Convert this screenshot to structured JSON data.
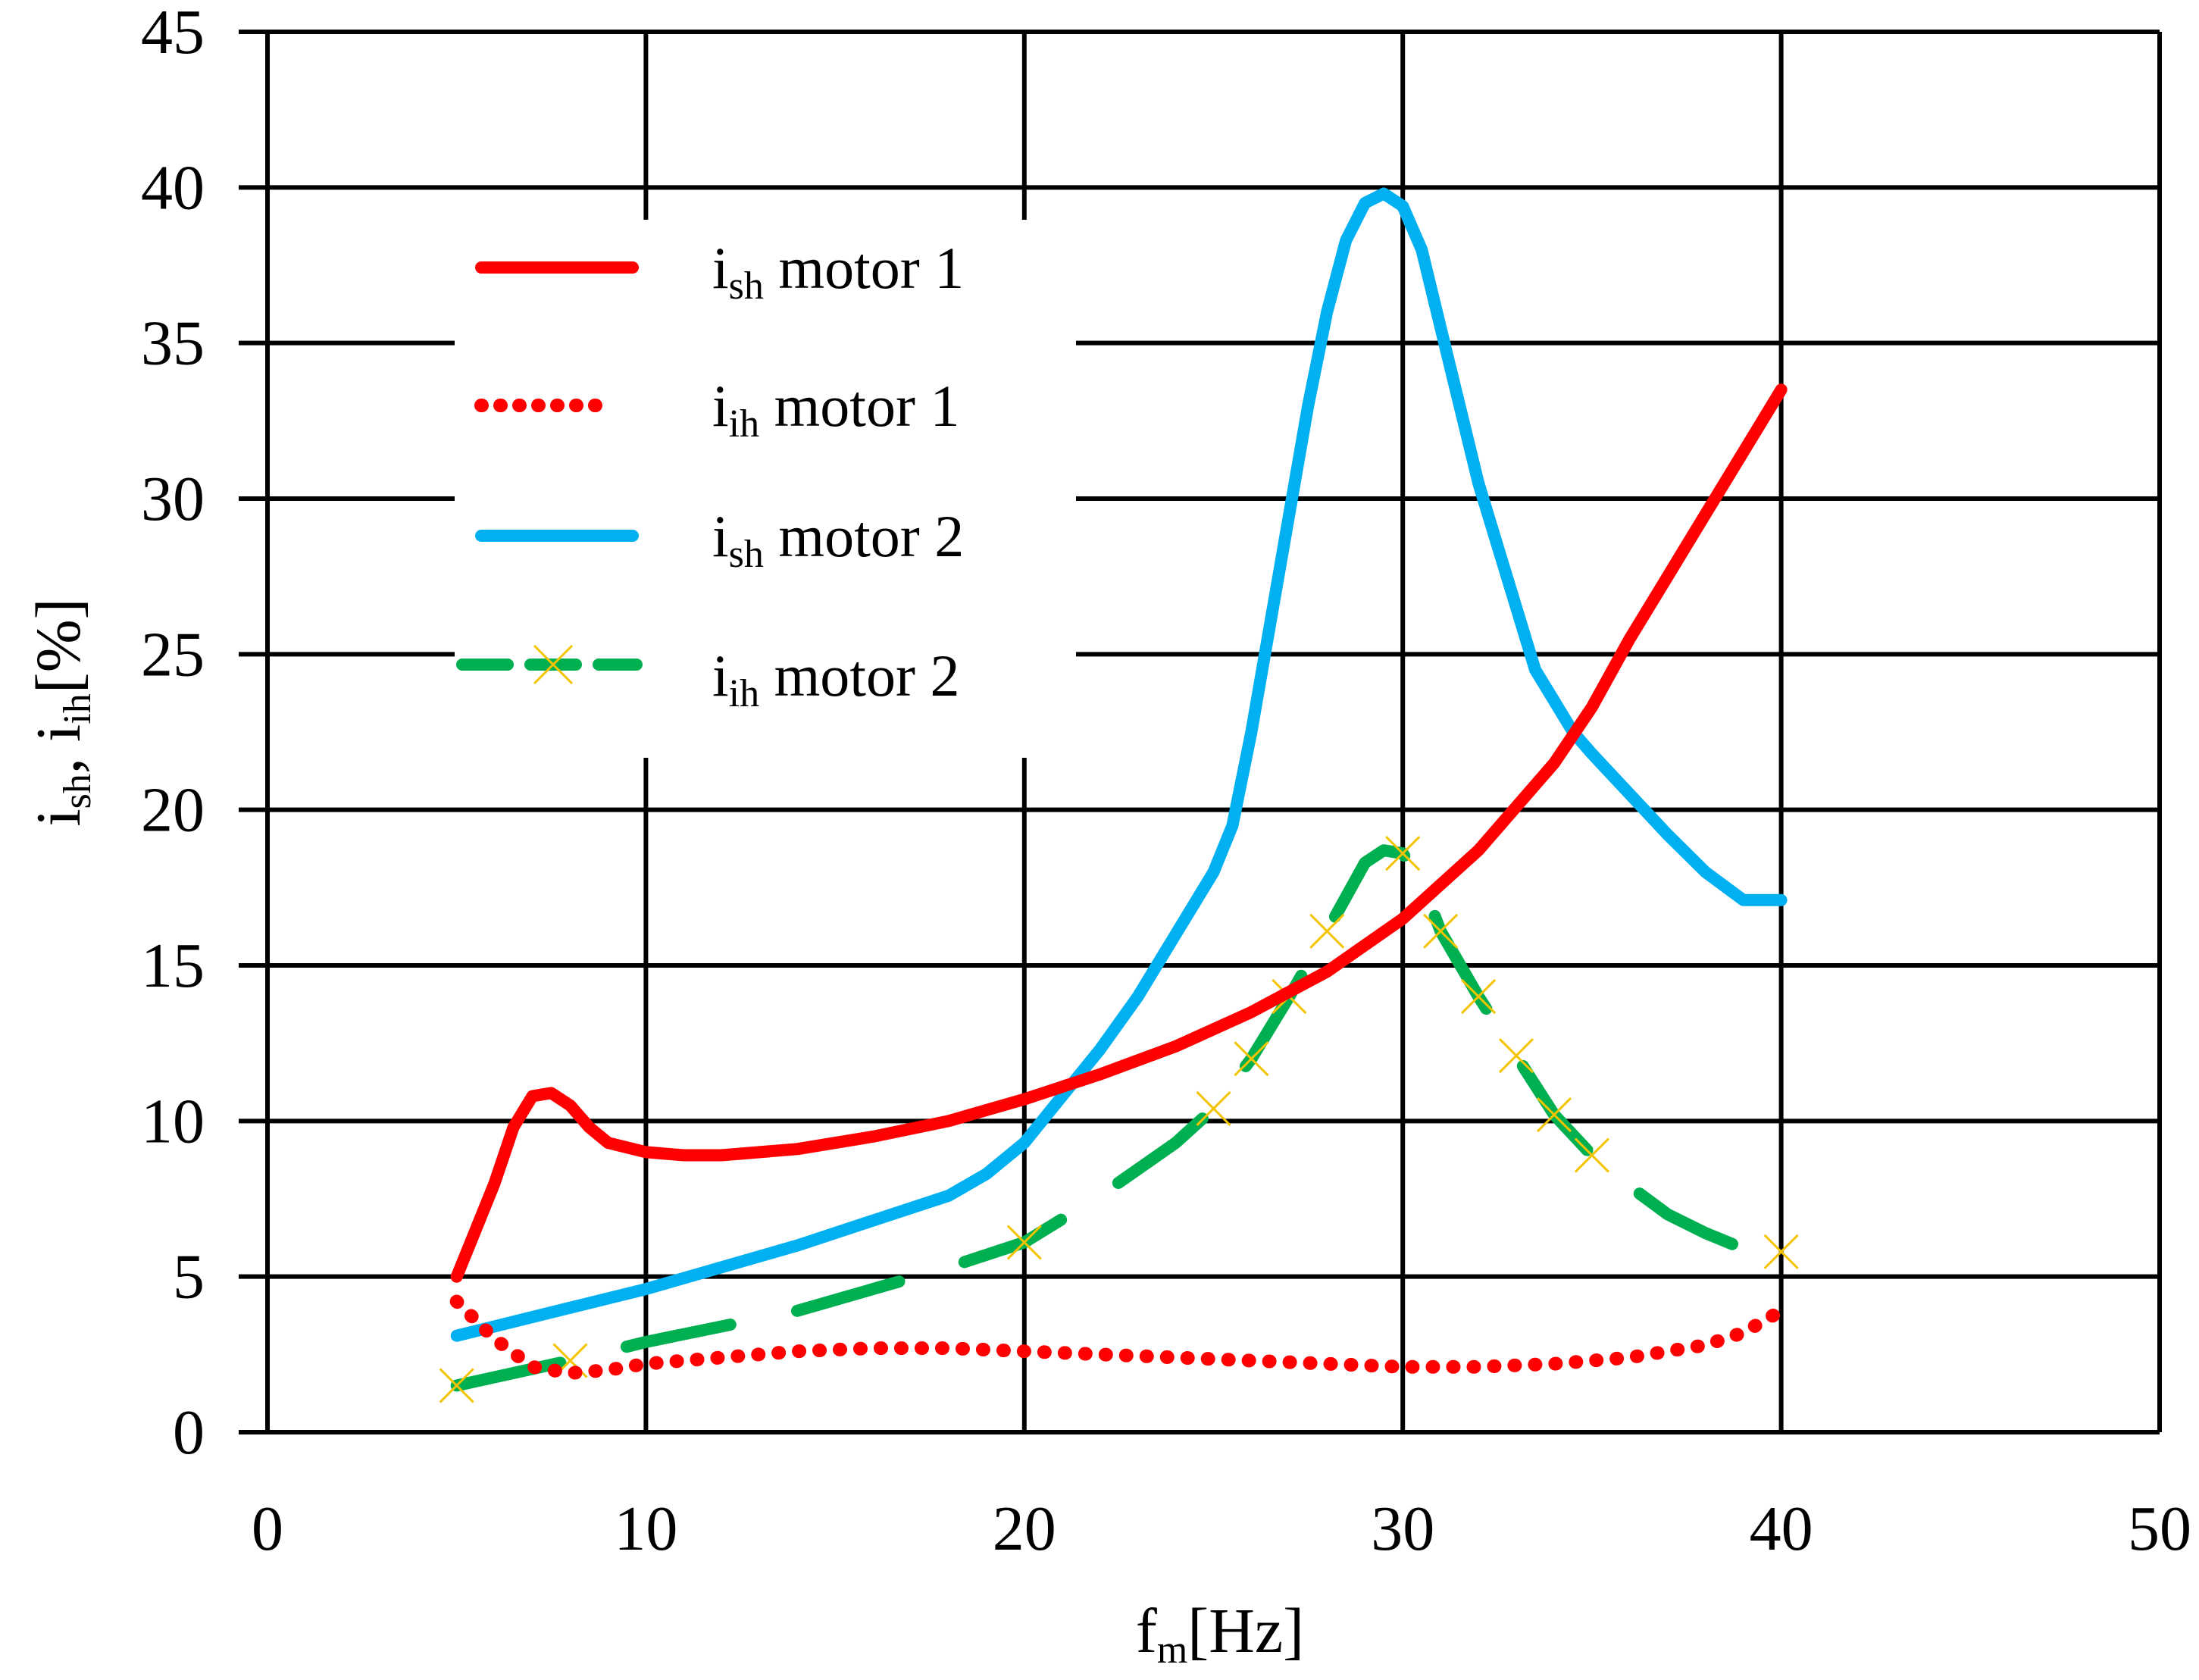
{
  "chart_data": {
    "type": "line",
    "title": "",
    "xlabel": {
      "main": "f",
      "sub": "m",
      "rest": "[Hz]"
    },
    "ylabel": {
      "p1": "i",
      "s1": "sh",
      "p2": ", i",
      "s2": "ih",
      "p3": "[%]"
    },
    "xlim": [
      0,
      50
    ],
    "ylim": [
      0,
      45
    ],
    "x_ticks": [
      0,
      10,
      20,
      30,
      40,
      50
    ],
    "y_ticks": [
      0,
      5,
      10,
      15,
      20,
      25,
      30,
      35,
      40,
      45
    ],
    "grid": true,
    "legend_position": "top-left",
    "series": [
      {
        "name": "i_sh motor 1",
        "legend": {
          "base": "i",
          "sub": "sh",
          "rest": " motor 1"
        },
        "color": "#ff0000",
        "style": "solid",
        "x": [
          5,
          5.5,
          6,
          6.5,
          7,
          7.5,
          8,
          8.5,
          9,
          10,
          11,
          12,
          14,
          16,
          18,
          20,
          22,
          24,
          26,
          28,
          30,
          32,
          34,
          35,
          36,
          37,
          38,
          39,
          40
        ],
        "y": [
          5,
          6.5,
          8,
          9.8,
          10.8,
          10.9,
          10.5,
          9.8,
          9.3,
          9,
          8.9,
          8.9,
          9.1,
          9.5,
          10,
          10.7,
          11.5,
          12.4,
          13.5,
          14.8,
          16.5,
          18.7,
          21.5,
          23.3,
          25.5,
          27.5,
          29.5,
          31.5,
          33.5
        ]
      },
      {
        "name": "i_ih motor 1",
        "legend": {
          "base": "i",
          "sub": "ih",
          "rest": " motor 1"
        },
        "color": "#ff0000",
        "style": "dotted",
        "x": [
          5,
          6,
          7,
          8,
          9,
          10,
          12,
          14,
          16,
          18,
          20,
          22,
          24,
          26,
          28,
          30,
          32,
          34,
          36,
          38,
          39,
          40
        ],
        "y": [
          4.2,
          3,
          2.1,
          1.9,
          2.0,
          2.2,
          2.4,
          2.6,
          2.7,
          2.7,
          2.6,
          2.5,
          2.4,
          2.3,
          2.2,
          2.1,
          2.1,
          2.2,
          2.4,
          2.8,
          3.2,
          3.9
        ]
      },
      {
        "name": "i_sh motor 2",
        "legend": {
          "base": "i",
          "sub": "sh",
          "rest": " motor 2"
        },
        "color": "#00b0f0",
        "style": "solid",
        "x": [
          5,
          8,
          10,
          12,
          14,
          16,
          18,
          19,
          20,
          21,
          22,
          23,
          24,
          25,
          25.5,
          26,
          26.5,
          27,
          27.5,
          28,
          28.5,
          29,
          29.5,
          30,
          30.5,
          31,
          31.5,
          32,
          32.5,
          33,
          33.5,
          34,
          34.5,
          35,
          36,
          37,
          38,
          39,
          40
        ],
        "y": [
          3.1,
          4,
          4.6,
          5.3,
          6,
          6.8,
          7.6,
          8.3,
          9.3,
          10.8,
          12.3,
          14,
          16,
          18,
          19.5,
          22.5,
          26,
          29.5,
          33,
          36,
          38.3,
          39.5,
          39.8,
          39.4,
          38,
          35.5,
          33,
          30.5,
          28.5,
          26.5,
          24.5,
          23.5,
          22.5,
          21.8,
          20.5,
          19.2,
          18,
          17.1,
          17.1
        ]
      },
      {
        "name": "i_ih motor 2",
        "legend": {
          "base": "i",
          "sub": "ih",
          "rest": " motor 2"
        },
        "color": "#00b050",
        "style": "dashed",
        "marker_color": "#f5c400",
        "x": [
          5,
          8,
          10,
          12,
          14,
          16,
          18,
          20,
          22,
          24,
          25,
          26,
          27,
          28,
          29,
          29.5,
          30,
          30.5,
          31,
          32,
          33,
          34,
          35,
          36,
          37,
          38,
          39,
          40
        ],
        "y": [
          1.5,
          2.3,
          2.9,
          3.4,
          3.9,
          4.6,
          5.3,
          6.1,
          7.6,
          9.3,
          10.4,
          12,
          14,
          16.1,
          18.3,
          18.7,
          18.6,
          17.7,
          16.1,
          14,
          12.1,
          10.2,
          8.9,
          7.9,
          7,
          6.4,
          5.9,
          5.8
        ],
        "marker_x": [
          5,
          8,
          20,
          25,
          26,
          27,
          28,
          30,
          31,
          32,
          33,
          34,
          35,
          40
        ],
        "marker_y": [
          1.5,
          2.3,
          6.1,
          10.4,
          12,
          14,
          16.1,
          18.6,
          16.1,
          14,
          12.1,
          10.2,
          8.9,
          5.8
        ]
      }
    ]
  }
}
